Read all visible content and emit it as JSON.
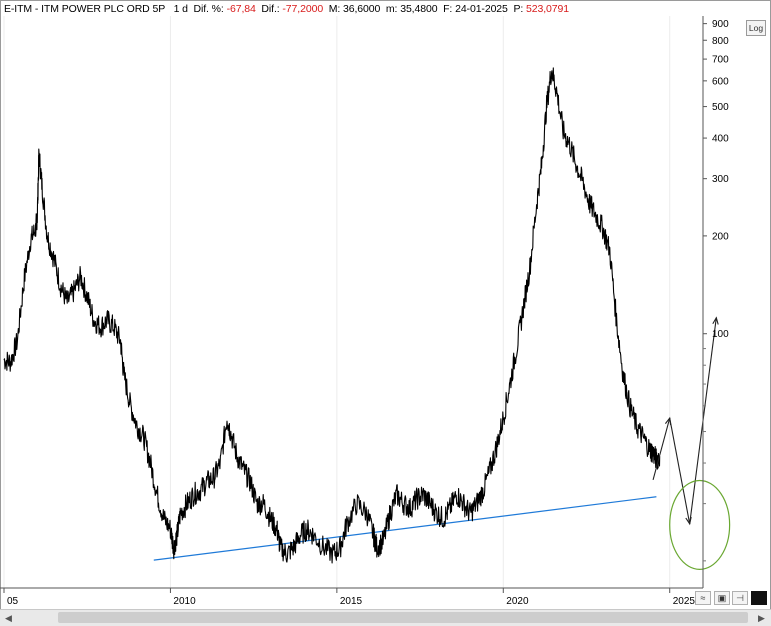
{
  "header": {
    "symbol_title": "E-ITM - ITM POWER PLC ORD 5P",
    "period": "1 d",
    "dif_pct_label": "Dif. %:",
    "dif_pct_value": "-67,84",
    "dif_label": "Dif.:",
    "dif_value": "-77,2000",
    "max_label": "M:",
    "max_value": "36,6000",
    "min_label": "m:",
    "min_value": "35,4800",
    "date_label": "F:",
    "date_value": "24-01-2025",
    "price_label": "P:",
    "price_value": "523,0791"
  },
  "toolbar": {
    "log_label": "Log"
  },
  "colors": {
    "price_line": "#000000",
    "support_line": "#1f7ad8",
    "ellipse": "#6aa832",
    "negative_text": "#d81b1b"
  },
  "chart_data": {
    "type": "line",
    "scale": "log",
    "x_range": [
      2005.0,
      2026.0
    ],
    "y_range": [
      16.5,
      950
    ],
    "x_ticks": [
      "05",
      "2010",
      "2015",
      "2020",
      "2025"
    ],
    "x_tick_values": [
      2005.0,
      2010.0,
      2015.0,
      2020.0,
      2025.0
    ],
    "y_ticks": [
      "900",
      "800",
      "700",
      "600",
      "500",
      "400",
      "300",
      "200",
      "100"
    ],
    "y_tick_values": [
      900,
      800,
      700,
      600,
      500,
      400,
      300,
      200,
      100
    ],
    "series": [
      {
        "values": [
          [
            2005.0,
            83
          ],
          [
            2005.2,
            82
          ],
          [
            2005.4,
            95
          ],
          [
            2005.6,
            145
          ],
          [
            2005.8,
            195
          ],
          [
            2005.95,
            210
          ],
          [
            2006.0,
            230
          ],
          [
            2006.05,
            360
          ],
          [
            2006.15,
            280
          ],
          [
            2006.3,
            200
          ],
          [
            2006.5,
            170
          ],
          [
            2006.7,
            140
          ],
          [
            2006.9,
            125
          ],
          [
            2007.1,
            135
          ],
          [
            2007.3,
            150
          ],
          [
            2007.5,
            130
          ],
          [
            2007.7,
            110
          ],
          [
            2007.9,
            105
          ],
          [
            2008.1,
            110
          ],
          [
            2008.3,
            105
          ],
          [
            2008.5,
            95
          ],
          [
            2008.6,
            75
          ],
          [
            2008.8,
            60
          ],
          [
            2009.0,
            52
          ],
          [
            2009.2,
            48
          ],
          [
            2009.4,
            40
          ],
          [
            2009.6,
            32
          ],
          [
            2009.8,
            27
          ],
          [
            2010.0,
            25
          ],
          [
            2010.1,
            22
          ],
          [
            2010.2,
            24
          ],
          [
            2010.3,
            28
          ],
          [
            2010.5,
            30
          ],
          [
            2010.7,
            32
          ],
          [
            2010.9,
            33
          ],
          [
            2011.1,
            35
          ],
          [
            2011.3,
            36
          ],
          [
            2011.5,
            40
          ],
          [
            2011.7,
            55
          ],
          [
            2011.8,
            50
          ],
          [
            2012.0,
            42
          ],
          [
            2012.2,
            38
          ],
          [
            2012.4,
            35
          ],
          [
            2012.6,
            30
          ],
          [
            2012.8,
            30
          ],
          [
            2013.0,
            27
          ],
          [
            2013.2,
            25
          ],
          [
            2013.3,
            22
          ],
          [
            2013.5,
            21
          ],
          [
            2013.7,
            22
          ],
          [
            2013.9,
            24
          ],
          [
            2014.1,
            25
          ],
          [
            2014.3,
            24
          ],
          [
            2014.6,
            22
          ],
          [
            2014.9,
            21
          ],
          [
            2015.1,
            22
          ],
          [
            2015.3,
            26
          ],
          [
            2015.6,
            30
          ],
          [
            2015.9,
            28
          ],
          [
            2016.1,
            24
          ],
          [
            2016.2,
            22
          ],
          [
            2016.4,
            23
          ],
          [
            2016.6,
            28
          ],
          [
            2016.8,
            32
          ],
          [
            2017.0,
            30
          ],
          [
            2017.2,
            29
          ],
          [
            2017.4,
            31
          ],
          [
            2017.6,
            32
          ],
          [
            2017.8,
            30
          ],
          [
            2018.0,
            28
          ],
          [
            2018.2,
            27
          ],
          [
            2018.4,
            29
          ],
          [
            2018.6,
            32
          ],
          [
            2018.8,
            30
          ],
          [
            2019.0,
            28
          ],
          [
            2019.2,
            30
          ],
          [
            2019.4,
            33
          ],
          [
            2019.6,
            38
          ],
          [
            2019.8,
            45
          ],
          [
            2020.0,
            55
          ],
          [
            2020.2,
            70
          ],
          [
            2020.4,
            90
          ],
          [
            2020.6,
            120
          ],
          [
            2020.8,
            160
          ],
          [
            2021.0,
            250
          ],
          [
            2021.15,
            330
          ],
          [
            2021.3,
            500
          ],
          [
            2021.45,
            650
          ],
          [
            2021.6,
            560
          ],
          [
            2021.8,
            420
          ],
          [
            2022.0,
            380
          ],
          [
            2022.2,
            330
          ],
          [
            2022.4,
            290
          ],
          [
            2022.6,
            250
          ],
          [
            2022.8,
            230
          ],
          [
            2023.0,
            210
          ],
          [
            2023.2,
            180
          ],
          [
            2023.4,
            110
          ],
          [
            2023.6,
            75
          ],
          [
            2023.8,
            60
          ],
          [
            2024.0,
            52
          ],
          [
            2024.2,
            48
          ],
          [
            2024.4,
            44
          ],
          [
            2024.5,
            43
          ],
          [
            2024.6,
            41
          ],
          [
            2024.7,
            42
          ]
        ]
      }
    ],
    "support_line": [
      [
        2009.5,
        20.1
      ],
      [
        2024.6,
        31.5
      ]
    ],
    "projection": [
      [
        2024.5,
        35.5
      ],
      [
        2025.0,
        55
      ],
      [
        2025.6,
        26
      ],
      [
        2026.4,
        112
      ]
    ],
    "ellipse": {
      "center": [
        2025.9,
        25.8
      ],
      "width_years": 1.8,
      "height_ratio": 1.37
    }
  }
}
